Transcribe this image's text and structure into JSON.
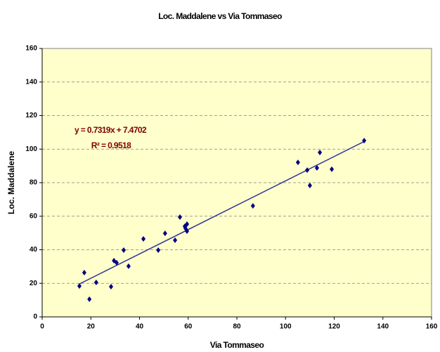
{
  "chart_data": {
    "type": "scatter",
    "title": "Loc. Maddalene vs Via Tommaseo",
    "x_label": "Via Tommaseo",
    "y_label": "Loc. Maddalene",
    "annotations": [
      "y = 0.7319x + 7.4702",
      "R² = 0.9518"
    ],
    "trendline": true,
    "trendline_color": "#333399",
    "annotation_color": "#800000",
    "plot_background": "#ffffcc",
    "grid": true,
    "series": [
      {
        "name": "Loc. Maddalene",
        "color": "#000080",
        "x": [
          15.3,
          17.3,
          19.4,
          22.2,
          28.3,
          29.5,
          30.6,
          33.5,
          35.5,
          41.6,
          47.7,
          50.5,
          54.6,
          56.6,
          58.6,
          58.9,
          59.5,
          59.5,
          86.6,
          105.1,
          108.9,
          110,
          112.9,
          114.1,
          119,
          132.3
        ],
        "values": [
          18.4,
          26.4,
          10.5,
          20.5,
          18,
          33.5,
          32.3,
          39.8,
          30.2,
          46.5,
          39.8,
          49.8,
          45.7,
          59.5,
          54,
          52.8,
          55.3,
          51.1,
          66.2,
          92.1,
          87.5,
          78.3,
          88.8,
          98,
          88,
          105.1
        ]
      }
    ],
    "xlim": [
      0,
      160
    ],
    "xticks": [
      0,
      20,
      40,
      60,
      80,
      100,
      120,
      140,
      160
    ],
    "ylim": [
      0,
      160
    ],
    "yticks": [
      0,
      20,
      40,
      60,
      80,
      100,
      120,
      140,
      160
    ]
  }
}
